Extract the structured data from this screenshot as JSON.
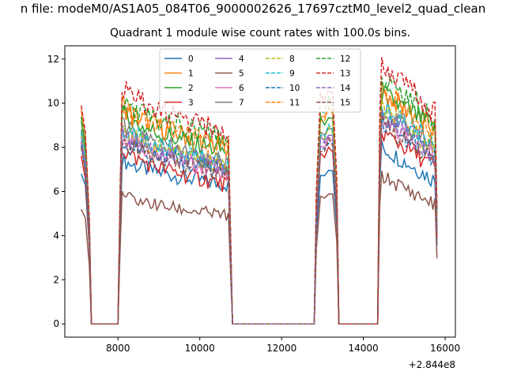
{
  "chart_data": {
    "type": "line",
    "suptitle": "n file: modeM0/AS1A05_084T06_9000002626_17697cztM0_level2_quad_clean",
    "title": "Quadrant 1 module wise count rates with 100.0s bins.",
    "xlabel": "",
    "ylabel": "",
    "x_offset_label": "+2.844e8",
    "xlim": [
      6700,
      16250
    ],
    "ylim": [
      -0.6,
      12.6
    ],
    "x_ticks": [
      8000,
      10000,
      12000,
      14000,
      16000
    ],
    "x_tick_labels": [
      "8000",
      "10000",
      "12000",
      "14000",
      "16000"
    ],
    "y_ticks": [
      0,
      2,
      4,
      6,
      8,
      10,
      12
    ],
    "y_tick_labels": [
      "0",
      "2",
      "4",
      "6",
      "8",
      "10",
      "12"
    ],
    "grid": false,
    "legend_placement": "top-center",
    "legend_columns": 4,
    "series": [
      {
        "name": "0",
        "color": "#1f77b4",
        "dash": "solid",
        "seg1": [
          6.8,
          6.3
        ],
        "base1": 7.5,
        "end1": 6.3,
        "peak2": 7.3,
        "base3": 8.0,
        "end3": 6.5
      },
      {
        "name": "1",
        "color": "#ff7f0e",
        "dash": "solid",
        "seg1": [
          9.7,
          8.5
        ],
        "base1": 10.0,
        "end1": 8.0,
        "peak2": 10.2,
        "base3": 10.5,
        "end3": 8.8
      },
      {
        "name": "2",
        "color": "#2ca02c",
        "dash": "solid",
        "seg1": [
          9.2,
          8.0
        ],
        "base1": 9.6,
        "end1": 7.8,
        "peak2": 9.8,
        "base3": 10.4,
        "end3": 8.9
      },
      {
        "name": "3",
        "color": "#d62728",
        "dash": "solid",
        "seg1": [
          7.6,
          6.6
        ],
        "base1": 8.0,
        "end1": 6.3,
        "peak2": 8.2,
        "base3": 8.7,
        "end3": 7.1
      },
      {
        "name": "4",
        "color": "#9467bd",
        "dash": "solid",
        "seg1": [
          8.5,
          7.4
        ],
        "base1": 8.8,
        "end1": 7.1,
        "peak2": 9.0,
        "base3": 9.6,
        "end3": 7.9
      },
      {
        "name": "5",
        "color": "#8c564b",
        "dash": "solid",
        "seg1": [
          5.2,
          4.8
        ],
        "base1": 5.9,
        "end1": 4.9,
        "peak2": 6.2,
        "base3": 6.7,
        "end3": 5.4
      },
      {
        "name": "6",
        "color": "#e377c2",
        "dash": "solid",
        "seg1": [
          8.2,
          7.2
        ],
        "base1": 8.6,
        "end1": 6.9,
        "peak2": 8.7,
        "base3": 9.3,
        "end3": 7.6
      },
      {
        "name": "7",
        "color": "#7f7f7f",
        "dash": "solid",
        "seg1": [
          8.8,
          7.7
        ],
        "base1": 9.1,
        "end1": 7.3,
        "peak2": 9.3,
        "base3": 9.8,
        "end3": 8.1
      },
      {
        "name": "8",
        "color": "#bcbd22",
        "dash": "dashed",
        "seg1": [
          8.6,
          7.5
        ],
        "base1": 8.9,
        "end1": 7.1,
        "peak2": 9.1,
        "base3": 9.7,
        "end3": 8.0
      },
      {
        "name": "9",
        "color": "#17becf",
        "dash": "dashed",
        "seg1": [
          8.7,
          7.6
        ],
        "base1": 9.0,
        "end1": 7.2,
        "peak2": 9.2,
        "base3": 9.9,
        "end3": 8.2
      },
      {
        "name": "10",
        "color": "#1f77b4",
        "dash": "dashed",
        "seg1": [
          8.1,
          7.0
        ],
        "base1": 8.4,
        "end1": 6.9,
        "peak2": 8.6,
        "base3": 9.2,
        "end3": 7.5
      },
      {
        "name": "11",
        "color": "#ff7f0e",
        "dash": "dashed",
        "seg1": [
          9.4,
          8.2
        ],
        "base1": 9.9,
        "end1": 8.0,
        "peak2": 10.0,
        "base3": 10.6,
        "end3": 8.7
      },
      {
        "name": "12",
        "color": "#2ca02c",
        "dash": "dashed",
        "seg1": [
          9.4,
          8.3
        ],
        "base1": 10.2,
        "end1": 8.4,
        "peak2": 10.4,
        "base3": 11.2,
        "end3": 9.4
      },
      {
        "name": "13",
        "color": "#d62728",
        "dash": "dashed",
        "seg1": [
          9.9,
          8.7
        ],
        "base1": 10.8,
        "end1": 8.6,
        "peak2": 11.0,
        "base3": 11.8,
        "end3": 9.6
      },
      {
        "name": "14",
        "color": "#9467bd",
        "dash": "dashed",
        "seg1": [
          8.3,
          7.3
        ],
        "base1": 8.7,
        "end1": 7.0,
        "peak2": 8.9,
        "base3": 9.4,
        "end3": 7.7
      },
      {
        "name": "15",
        "color": "#8c564b",
        "dash": "dashed",
        "seg1": [
          8.0,
          6.9
        ],
        "base1": 8.3,
        "end1": 6.8,
        "peak2": 8.5,
        "base3": 9.1,
        "end3": 7.4
      }
    ]
  }
}
